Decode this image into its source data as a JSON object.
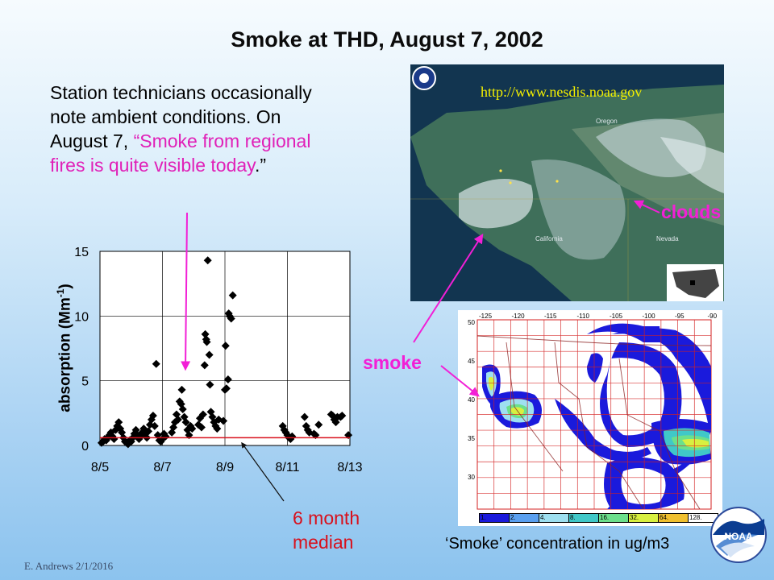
{
  "slide": {
    "title": "Smoke at THD, August 7, 2002",
    "body_line1": "Station technicians occasionally note ambient conditions.  On August 7,",
    "body_quote": "“Smoke from regional fires is quite visible today",
    "body_end": ".”",
    "footer": "E. Andrews   2/1/2016"
  },
  "satellite": {
    "url": "http://www.nesdis.noaa.gov",
    "label_oregon": "Oregon",
    "label_california": "California",
    "label_nevada": "Nevada",
    "clouds_label": "clouds"
  },
  "smoke_label": "smoke",
  "median_label_line1": "6 month",
  "median_label_line2": "median",
  "map": {
    "caption": "‘Smoke’ concentration in ug/m3",
    "lon_labels": [
      "-125",
      "-120",
      "-115",
      "-110",
      "-105",
      "-100",
      "-95",
      "-90"
    ],
    "lat_labels": [
      "50",
      "45",
      "40",
      "35",
      "30"
    ],
    "legend": [
      "1.",
      "2.",
      "4.",
      "8.",
      "16.",
      "32.",
      "64.",
      "128."
    ],
    "legend_colors": [
      "#1a1adc",
      "#5aa0f0",
      "#9ee0f0",
      "#40c8c8",
      "#6ce08c",
      "#d8f040",
      "#f0c030",
      "#ffffff"
    ]
  },
  "colors": {
    "accent_pink": "#f21fd6",
    "median_red": "#d8101c",
    "marker": "#000000"
  },
  "chart_data": {
    "type": "scatter",
    "ylabel": "absorption (Mm-1)",
    "ylabel_main": "absorption (Mm",
    "ylabel_sup": "-1",
    "ylabel_end": ")",
    "xlabel": "",
    "xticks": [
      5,
      7,
      9,
      11,
      13
    ],
    "xtick_labels": [
      "8/5",
      "8/7",
      "8/9",
      "8/11",
      "8/13"
    ],
    "yticks": [
      0,
      5,
      10,
      15
    ],
    "xlim": [
      5,
      13
    ],
    "ylim": [
      0,
      15
    ],
    "grid": true,
    "median": 0.6,
    "series": [
      {
        "marker": "diamond",
        "points": [
          [
            5.05,
            0.2
          ],
          [
            5.1,
            0.3
          ],
          [
            5.15,
            0.5
          ],
          [
            5.2,
            0.4
          ],
          [
            5.25,
            0.6
          ],
          [
            5.3,
            0.8
          ],
          [
            5.35,
            1.0
          ],
          [
            5.4,
            0.7
          ],
          [
            5.45,
            0.5
          ],
          [
            5.5,
            1.2
          ],
          [
            5.55,
            1.5
          ],
          [
            5.6,
            1.8
          ],
          [
            5.65,
            1.3
          ],
          [
            5.7,
            1.0
          ],
          [
            5.75,
            0.6
          ],
          [
            5.8,
            0.3
          ],
          [
            5.85,
            0.2
          ],
          [
            5.9,
            0.1
          ],
          [
            5.95,
            0.4
          ],
          [
            6.0,
            0.3
          ],
          [
            6.05,
            0.6
          ],
          [
            6.1,
            0.9
          ],
          [
            6.15,
            1.2
          ],
          [
            6.2,
            0.8
          ],
          [
            6.25,
            0.5
          ],
          [
            6.3,
            0.7
          ],
          [
            6.35,
            1.0
          ],
          [
            6.4,
            1.3
          ],
          [
            6.45,
            0.9
          ],
          [
            6.5,
            0.6
          ],
          [
            6.55,
            1.1
          ],
          [
            6.6,
            1.6
          ],
          [
            6.65,
            2.0
          ],
          [
            6.7,
            2.3
          ],
          [
            6.75,
            1.5
          ],
          [
            6.8,
            6.3
          ],
          [
            6.85,
            0.8
          ],
          [
            6.9,
            0.4
          ],
          [
            6.95,
            0.3
          ],
          [
            7.0,
            0.5
          ],
          [
            7.05,
            0.9
          ],
          [
            7.1,
            0.7
          ],
          [
            7.3,
            1.0
          ],
          [
            7.35,
            1.4
          ],
          [
            7.4,
            1.8
          ],
          [
            7.45,
            2.4
          ],
          [
            7.5,
            2.0
          ],
          [
            7.55,
            3.4
          ],
          [
            7.6,
            3.2
          ],
          [
            7.62,
            4.3
          ],
          [
            7.65,
            2.8
          ],
          [
            7.7,
            2.2
          ],
          [
            7.75,
            1.8
          ],
          [
            7.8,
            1.2
          ],
          [
            7.85,
            0.8
          ],
          [
            7.9,
            1.5
          ],
          [
            7.95,
            1.3
          ],
          [
            8.15,
            1.6
          ],
          [
            8.2,
            2.1
          ],
          [
            8.25,
            1.4
          ],
          [
            8.3,
            2.4
          ],
          [
            8.35,
            6.2
          ],
          [
            8.37,
            8.6
          ],
          [
            8.4,
            8.2
          ],
          [
            8.42,
            8.0
          ],
          [
            8.45,
            14.3
          ],
          [
            8.5,
            7.0
          ],
          [
            8.52,
            4.7
          ],
          [
            8.55,
            2.6
          ],
          [
            8.6,
            2.2
          ],
          [
            8.65,
            1.8
          ],
          [
            8.7,
            1.5
          ],
          [
            8.75,
            1.3
          ],
          [
            8.8,
            2.0
          ],
          [
            8.95,
            1.9
          ],
          [
            9.0,
            4.3
          ],
          [
            9.02,
            7.7
          ],
          [
            9.05,
            4.4
          ],
          [
            9.1,
            5.1
          ],
          [
            9.12,
            10.2
          ],
          [
            9.15,
            10.0
          ],
          [
            9.2,
            9.8
          ],
          [
            9.25,
            11.6
          ],
          [
            10.85,
            1.5
          ],
          [
            10.9,
            1.2
          ],
          [
            10.95,
            1.0
          ],
          [
            11.0,
            0.8
          ],
          [
            11.05,
            0.6
          ],
          [
            11.1,
            0.5
          ],
          [
            11.15,
            0.7
          ],
          [
            11.55,
            2.2
          ],
          [
            11.6,
            1.5
          ],
          [
            11.65,
            1.2
          ],
          [
            11.7,
            1.0
          ],
          [
            11.85,
            0.9
          ],
          [
            11.9,
            0.8
          ],
          [
            12.0,
            1.6
          ],
          [
            12.4,
            2.4
          ],
          [
            12.45,
            2.3
          ],
          [
            12.5,
            2.0
          ],
          [
            12.55,
            1.8
          ],
          [
            12.6,
            2.2
          ],
          [
            12.7,
            2.2
          ],
          [
            12.75,
            2.3
          ],
          [
            12.95,
            0.8
          ]
        ]
      }
    ]
  }
}
